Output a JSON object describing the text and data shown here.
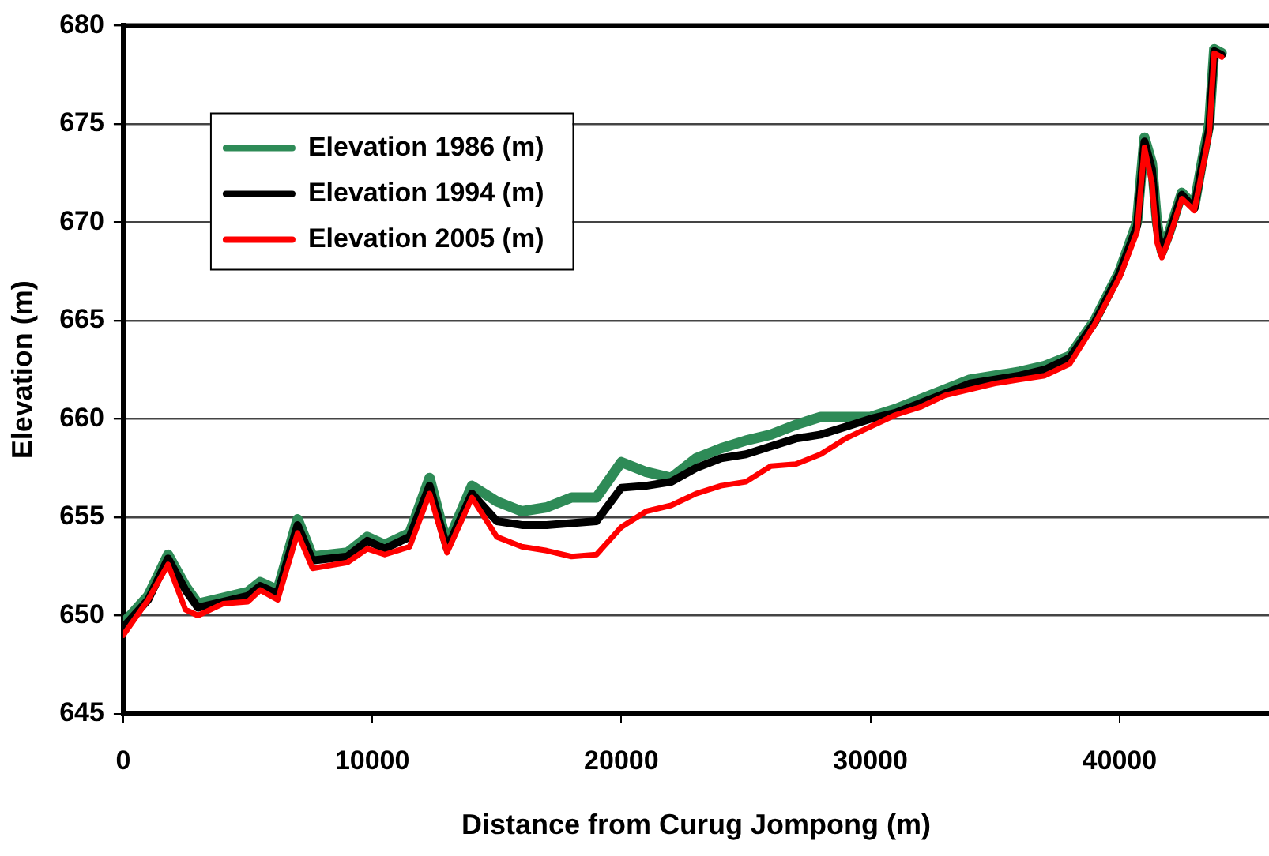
{
  "chart_data": {
    "type": "line",
    "xlabel": "Distance from Curug Jompong (m)",
    "ylabel": "Elevation (m)",
    "x": [
      0,
      1000,
      1800,
      2500,
      3000,
      4000,
      5000,
      5500,
      6200,
      7000,
      7600,
      9000,
      9800,
      10500,
      11500,
      12300,
      13000,
      14000,
      15000,
      16000,
      17000,
      18000,
      19000,
      20000,
      21000,
      22000,
      23000,
      24000,
      25000,
      26000,
      27000,
      28000,
      29000,
      30000,
      31000,
      32000,
      33000,
      34000,
      35000,
      36000,
      37000,
      38000,
      39000,
      40000,
      40700,
      41000,
      41300,
      41500,
      41700,
      42000,
      42500,
      43000,
      43300,
      43600,
      43800,
      44100
    ],
    "series": [
      {
        "name": "Elevation 1986 (m)",
        "color": "#2e8b57",
        "values": [
          649.6,
          651,
          653.1,
          651.5,
          650.6,
          650.9,
          651.2,
          651.7,
          651.3,
          654.9,
          653,
          653.2,
          654,
          653.6,
          654.2,
          657,
          653.6,
          656.6,
          655.8,
          655.3,
          655.5,
          656,
          656,
          657.8,
          657.3,
          657,
          658,
          658.5,
          658.9,
          659.2,
          659.7,
          660.1,
          660.1,
          660.1,
          660.5,
          661,
          661.5,
          662,
          662.2,
          662.4,
          662.7,
          663.2,
          665,
          667.5,
          670,
          674.3,
          673,
          670,
          668.5,
          669.5,
          671.5,
          670.8,
          673,
          675,
          678.8,
          678.6
        ]
      },
      {
        "name": "Elevation 1994 (m)",
        "color": "#000000",
        "values": [
          649.4,
          650.8,
          652.9,
          651.3,
          650.4,
          650.7,
          651,
          651.5,
          651.1,
          654.6,
          652.8,
          653,
          653.8,
          653.4,
          654,
          656.6,
          653.4,
          656.2,
          654.8,
          654.6,
          654.6,
          654.7,
          654.8,
          656.5,
          656.6,
          656.8,
          657.5,
          658,
          658.2,
          658.6,
          659,
          659.2,
          659.6,
          660,
          660.3,
          660.8,
          661.3,
          661.8,
          662,
          662.2,
          662.5,
          663.1,
          664.9,
          667.4,
          669.8,
          674.1,
          672.7,
          669.7,
          668.4,
          669.4,
          671.4,
          670.7,
          672.8,
          674.8,
          678.7,
          678.5
        ]
      },
      {
        "name": "Elevation 2005 (m)",
        "color": "#ff0000",
        "values": [
          649,
          650.8,
          652.6,
          650.3,
          650,
          650.6,
          650.7,
          651.3,
          650.8,
          654.2,
          652.4,
          652.7,
          653.4,
          653.1,
          653.5,
          656.2,
          653.2,
          656,
          654,
          653.5,
          653.3,
          653,
          653.1,
          654.5,
          655.3,
          655.6,
          656.2,
          656.6,
          656.8,
          657.6,
          657.7,
          658.2,
          659,
          659.6,
          660.2,
          660.6,
          661.2,
          661.5,
          661.8,
          662,
          662.2,
          662.8,
          664.8,
          667.2,
          669.5,
          673.8,
          672,
          669,
          668.2,
          669.2,
          671.2,
          670.6,
          672.5,
          674.5,
          678.6,
          678.4
        ]
      }
    ],
    "xlim": [
      0,
      46000
    ],
    "xticks": [
      0,
      10000,
      20000,
      30000,
      40000
    ],
    "ylim": [
      645,
      680
    ],
    "yticks": [
      645,
      650,
      655,
      660,
      665,
      670,
      675,
      680
    ],
    "grid": "y",
    "legend": "top left",
    "marker": "none",
    "line_style": "solid"
  }
}
